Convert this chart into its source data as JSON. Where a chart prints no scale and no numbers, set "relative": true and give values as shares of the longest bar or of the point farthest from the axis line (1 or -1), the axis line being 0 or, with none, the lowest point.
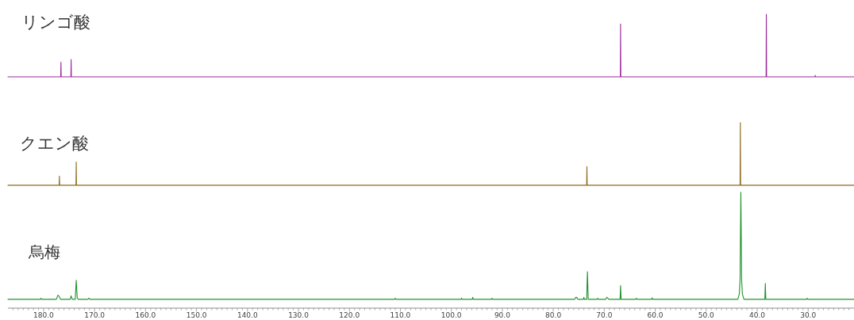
{
  "chart_data": {
    "type": "line",
    "relative": true,
    "xlim": [
      187,
      21
    ],
    "xticks": [
      {
        "value": 186,
        "label": null
      },
      {
        "value": 185,
        "label": null
      },
      {
        "value": 184,
        "label": null
      },
      {
        "value": 183,
        "label": null
      },
      {
        "value": 182,
        "label": null
      },
      {
        "value": 181,
        "label": null
      },
      {
        "value": 180,
        "label": "180.0"
      },
      {
        "value": 179,
        "label": null
      },
      {
        "value": 178,
        "label": null
      },
      {
        "value": 177,
        "label": null
      },
      {
        "value": 176,
        "label": null
      },
      {
        "value": 175,
        "label": null
      },
      {
        "value": 174,
        "label": null
      },
      {
        "value": 173,
        "label": null
      },
      {
        "value": 172,
        "label": null
      },
      {
        "value": 171,
        "label": null
      },
      {
        "value": 170,
        "label": "170.0"
      },
      {
        "value": 169,
        "label": null
      },
      {
        "value": 168,
        "label": null
      },
      {
        "value": 167,
        "label": null
      },
      {
        "value": 166,
        "label": null
      },
      {
        "value": 165,
        "label": null
      },
      {
        "value": 164,
        "label": null
      },
      {
        "value": 163,
        "label": null
      },
      {
        "value": 162,
        "label": null
      },
      {
        "value": 161,
        "label": null
      },
      {
        "value": 160,
        "label": "160.0"
      },
      {
        "value": 159,
        "label": null
      },
      {
        "value": 158,
        "label": null
      },
      {
        "value": 157,
        "label": null
      },
      {
        "value": 156,
        "label": null
      },
      {
        "value": 155,
        "label": null
      },
      {
        "value": 154,
        "label": null
      },
      {
        "value": 153,
        "label": null
      },
      {
        "value": 152,
        "label": null
      },
      {
        "value": 151,
        "label": null
      },
      {
        "value": 150,
        "label": "150.0"
      },
      {
        "value": 149,
        "label": null
      },
      {
        "value": 148,
        "label": null
      },
      {
        "value": 147,
        "label": null
      },
      {
        "value": 146,
        "label": null
      },
      {
        "value": 145,
        "label": null
      },
      {
        "value": 144,
        "label": null
      },
      {
        "value": 143,
        "label": null
      },
      {
        "value": 142,
        "label": null
      },
      {
        "value": 141,
        "label": null
      },
      {
        "value": 140,
        "label": "140.0"
      },
      {
        "value": 139,
        "label": null
      },
      {
        "value": 138,
        "label": null
      },
      {
        "value": 137,
        "label": null
      },
      {
        "value": 136,
        "label": null
      },
      {
        "value": 135,
        "label": null
      },
      {
        "value": 134,
        "label": null
      },
      {
        "value": 133,
        "label": null
      },
      {
        "value": 132,
        "label": null
      },
      {
        "value": 131,
        "label": null
      },
      {
        "value": 130,
        "label": "130.0"
      },
      {
        "value": 129,
        "label": null
      },
      {
        "value": 128,
        "label": null
      },
      {
        "value": 127,
        "label": null
      },
      {
        "value": 126,
        "label": null
      },
      {
        "value": 125,
        "label": null
      },
      {
        "value": 124,
        "label": null
      },
      {
        "value": 123,
        "label": null
      },
      {
        "value": 122,
        "label": null
      },
      {
        "value": 121,
        "label": null
      },
      {
        "value": 120,
        "label": "120.0"
      },
      {
        "value": 119,
        "label": null
      },
      {
        "value": 118,
        "label": null
      },
      {
        "value": 117,
        "label": null
      },
      {
        "value": 116,
        "label": null
      },
      {
        "value": 115,
        "label": null
      },
      {
        "value": 114,
        "label": null
      },
      {
        "value": 113,
        "label": null
      },
      {
        "value": 112,
        "label": null
      },
      {
        "value": 111,
        "label": null
      },
      {
        "value": 110,
        "label": "110.0"
      },
      {
        "value": 109,
        "label": null
      },
      {
        "value": 108,
        "label": null
      },
      {
        "value": 107,
        "label": null
      },
      {
        "value": 106,
        "label": null
      },
      {
        "value": 105,
        "label": null
      },
      {
        "value": 104,
        "label": null
      },
      {
        "value": 103,
        "label": null
      },
      {
        "value": 102,
        "label": null
      },
      {
        "value": 101,
        "label": null
      },
      {
        "value": 100,
        "label": "100.0"
      },
      {
        "value": 99,
        "label": null
      },
      {
        "value": 98,
        "label": null
      },
      {
        "value": 97,
        "label": null
      },
      {
        "value": 96,
        "label": null
      },
      {
        "value": 95,
        "label": null
      },
      {
        "value": 94,
        "label": null
      },
      {
        "value": 93,
        "label": null
      },
      {
        "value": 92,
        "label": null
      },
      {
        "value": 91,
        "label": null
      },
      {
        "value": 90,
        "label": "90.0"
      },
      {
        "value": 89,
        "label": null
      },
      {
        "value": 88,
        "label": null
      },
      {
        "value": 87,
        "label": null
      },
      {
        "value": 86,
        "label": null
      },
      {
        "value": 85,
        "label": null
      },
      {
        "value": 84,
        "label": null
      },
      {
        "value": 83,
        "label": null
      },
      {
        "value": 82,
        "label": null
      },
      {
        "value": 81,
        "label": null
      },
      {
        "value": 80,
        "label": "80.0"
      },
      {
        "value": 79,
        "label": null
      },
      {
        "value": 78,
        "label": null
      },
      {
        "value": 77,
        "label": null
      },
      {
        "value": 76,
        "label": null
      },
      {
        "value": 75,
        "label": null
      },
      {
        "value": 74,
        "label": null
      },
      {
        "value": 73,
        "label": null
      },
      {
        "value": 72,
        "label": null
      },
      {
        "value": 71,
        "label": null
      },
      {
        "value": 70,
        "label": "70.0"
      },
      {
        "value": 69,
        "label": null
      },
      {
        "value": 68,
        "label": null
      },
      {
        "value": 67,
        "label": null
      },
      {
        "value": 66,
        "label": null
      },
      {
        "value": 65,
        "label": null
      },
      {
        "value": 64,
        "label": null
      },
      {
        "value": 63,
        "label": null
      },
      {
        "value": 62,
        "label": null
      },
      {
        "value": 61,
        "label": null
      },
      {
        "value": 60,
        "label": "60.0"
      },
      {
        "value": 59,
        "label": null
      },
      {
        "value": 58,
        "label": null
      },
      {
        "value": 57,
        "label": null
      },
      {
        "value": 56,
        "label": null
      },
      {
        "value": 55,
        "label": null
      },
      {
        "value": 54,
        "label": null
      },
      {
        "value": 53,
        "label": null
      },
      {
        "value": 52,
        "label": null
      },
      {
        "value": 51,
        "label": null
      },
      {
        "value": 50,
        "label": "50.0"
      },
      {
        "value": 49,
        "label": null
      },
      {
        "value": 48,
        "label": null
      },
      {
        "value": 47,
        "label": null
      },
      {
        "value": 46,
        "label": null
      },
      {
        "value": 45,
        "label": null
      },
      {
        "value": 44,
        "label": null
      },
      {
        "value": 43,
        "label": null
      },
      {
        "value": 42,
        "label": null
      },
      {
        "value": 41,
        "label": null
      },
      {
        "value": 40,
        "label": "40.0"
      },
      {
        "value": 39,
        "label": null
      },
      {
        "value": 38,
        "label": null
      },
      {
        "value": 37,
        "label": null
      },
      {
        "value": 36,
        "label": null
      },
      {
        "value": 35,
        "label": null
      },
      {
        "value": 34,
        "label": null
      },
      {
        "value": 33,
        "label": null
      },
      {
        "value": 32,
        "label": null
      },
      {
        "value": 31,
        "label": null
      },
      {
        "value": 30,
        "label": "30.0"
      },
      {
        "value": 29,
        "label": null
      },
      {
        "value": 28,
        "label": null
      },
      {
        "value": 27,
        "label": null
      },
      {
        "value": 26,
        "label": null
      },
      {
        "value": 25,
        "label": null
      },
      {
        "value": 24,
        "label": null
      },
      {
        "value": 23,
        "label": null
      },
      {
        "value": 22,
        "label": null
      }
    ],
    "series": [
      {
        "name": "リンゴ酸",
        "color": "#9c2b9c",
        "x": [
          187,
          176.65,
          176.6,
          176.55,
          174.65,
          174.6,
          174.55,
          66.85,
          66.8,
          66.75,
          38.25,
          38.2,
          38.15,
          28.65,
          28.6,
          28.55,
          21
        ],
        "values": [
          0.787,
          0.787,
          0.837,
          0.787,
          0.787,
          0.846,
          0.787,
          0.787,
          0.967,
          0.787,
          0.787,
          1,
          0.787,
          0.787,
          0.792,
          0.787,
          0.787
        ]
      },
      {
        "name": "クエン酸",
        "color": "#8c6a1c",
        "x": [
          187,
          176.95,
          176.9,
          176.85,
          173.65,
          173.6,
          173.55,
          73.45,
          73.4,
          73.35,
          43.35,
          43.3,
          43.25,
          21
        ],
        "values": [
          0.418,
          0.418,
          0.449,
          0.418,
          0.418,
          0.497,
          0.418,
          0.418,
          0.482,
          0.418,
          0.418,
          0.631,
          0.418,
          0.418
        ]
      },
      {
        "name": "烏梅",
        "color": "#22922b",
        "x": [
          187,
          180.6,
          180.5,
          180.4,
          177.5,
          177.2,
          176.95,
          176.7,
          174.8,
          174.6,
          174.4,
          173.8,
          173.6,
          173.4,
          173.2,
          171.3,
          171.1,
          170.9,
          111.1,
          111.0,
          110.9,
          98.1,
          98.0,
          97.9,
          95.9,
          95.8,
          95.7,
          92.1,
          92.0,
          91.9,
          75.8,
          75.6,
          75.5,
          75.4,
          75.2,
          74.1,
          74.0,
          73.9,
          73.45,
          73.3,
          73.15,
          71.4,
          71.3,
          71.2,
          69.7,
          69.5,
          69.3,
          69.1,
          66.9,
          66.8,
          66.7,
          63.8,
          63.7,
          63.6,
          60.7,
          60.6,
          60.5,
          43.8,
          43.5,
          43.35,
          43.2,
          43.05,
          42.9,
          42.6,
          38.5,
          38.4,
          38.3,
          30.3,
          30.2,
          30.1,
          21
        ],
        "values": [
          0.03,
          0.03,
          0.034,
          0.03,
          0.03,
          0.044,
          0.04,
          0.03,
          0.03,
          0.042,
          0.03,
          0.03,
          0.095,
          0.034,
          0.03,
          0.03,
          0.034,
          0.03,
          0.03,
          0.034,
          0.03,
          0.03,
          0.034,
          0.03,
          0.03,
          0.037,
          0.03,
          0.03,
          0.034,
          0.03,
          0.03,
          0.037,
          0.035,
          0.037,
          0.03,
          0.03,
          0.037,
          0.03,
          0.03,
          0.124,
          0.03,
          0.03,
          0.034,
          0.03,
          0.03,
          0.037,
          0.034,
          0.03,
          0.03,
          0.077,
          0.03,
          0.03,
          0.034,
          0.03,
          0.03,
          0.035,
          0.03,
          0.03,
          0.048,
          0.099,
          0.394,
          0.099,
          0.048,
          0.03,
          0.03,
          0.084,
          0.03,
          0.03,
          0.034,
          0.03,
          0.03
        ]
      }
    ]
  }
}
